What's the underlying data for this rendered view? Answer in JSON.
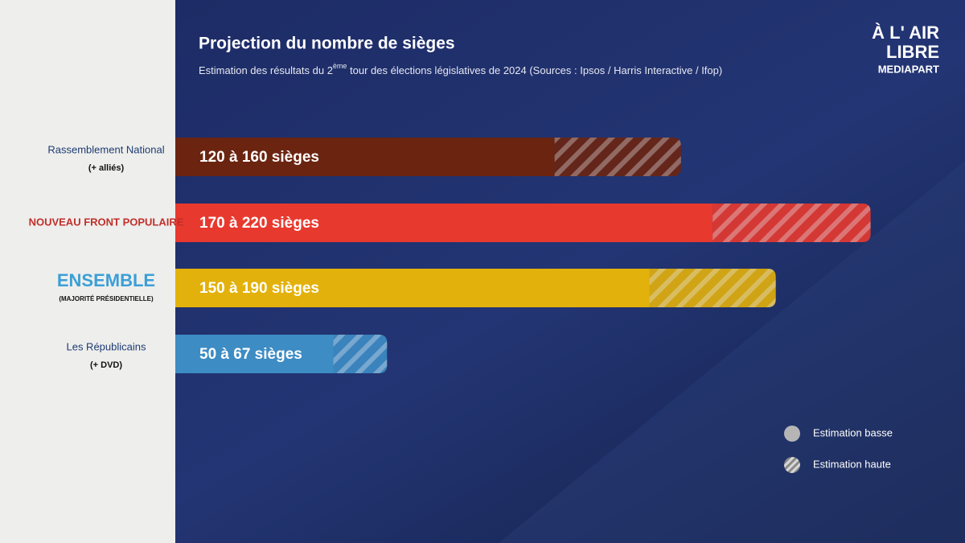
{
  "chart_data": {
    "type": "range-bar",
    "title": "Projection du nombre de sièges",
    "subtitle": [
      "Estimation des résultats du 2",
      "ème",
      " tour des élections législatives de 2024 (Sources : Ipsos / Harris Interactive / Ifop)"
    ],
    "brand": [
      "À L' AIR",
      "LIBRE",
      "MEDIAPART"
    ],
    "categories": [
      "Rassemblement National",
      "NOUVEAU FRONT POPULAIRE",
      "ENSEMBLE",
      "Les Républicains"
    ],
    "category_notes": [
      "(+ alliés)",
      null,
      "(MAJORITÉ PRÉSIDENTIELLE)",
      "(+ DVD)"
    ],
    "colors": [
      "#6b2410",
      "#e8392e",
      "#e3b10b",
      "#3d8cc4"
    ],
    "series": [
      {
        "name": "Estimation basse",
        "values": [
          120,
          170,
          150,
          50
        ]
      },
      {
        "name": "Estimation haute",
        "values": [
          160,
          220,
          190,
          67
        ]
      }
    ],
    "value_labels": [
      "120 à 160 sièges",
      "170 à 220 sièges",
      "150 à 190 sièges",
      "50 à 67 sièges"
    ]
  }
}
